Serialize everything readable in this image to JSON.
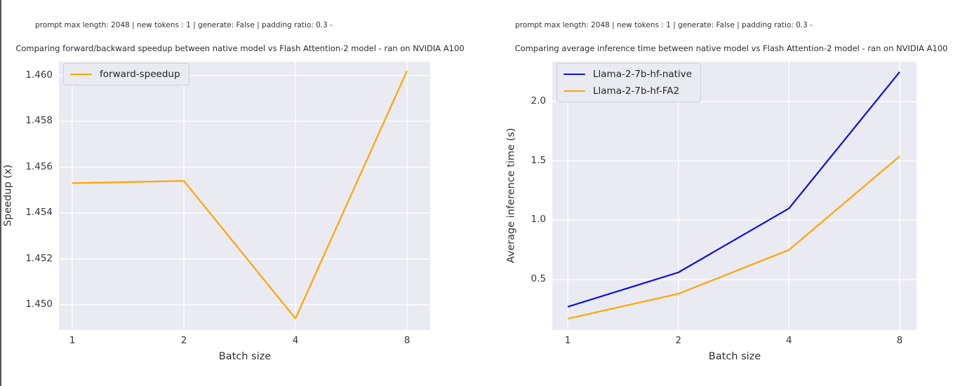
{
  "page": {
    "background": "#ffffff",
    "left_border_color": "#54545c",
    "plot_background": "#eaeaf2",
    "grid_color": "#ffffff"
  },
  "chart_data": [
    {
      "type": "line",
      "suptitle": "prompt max length: 2048 | new tokens : 1 | generate: False | padding ratio: 0.3 -",
      "title": "Comparing forward/backward speedup between native model vs Flash Attention-2 model - ran on NVIDIA A100",
      "xlabel": "Batch size",
      "ylabel": "Speedup (x)",
      "categories": [
        1,
        2,
        4,
        8
      ],
      "xtick_labels": [
        "1",
        "2",
        "4",
        "8"
      ],
      "ytick_values": [
        1.45,
        1.452,
        1.454,
        1.456,
        1.458,
        1.46
      ],
      "ytick_labels": [
        "1.450",
        "1.452",
        "1.454",
        "1.456",
        "1.458",
        "1.460"
      ],
      "ylim": [
        1.4489,
        1.4606
      ],
      "grid": true,
      "legend_position": "upper left",
      "series": [
        {
          "name": "forward-speedup",
          "color": "#ffa500",
          "values": [
            1.4553,
            1.4554,
            1.4494,
            1.4602
          ]
        }
      ]
    },
    {
      "type": "line",
      "suptitle": "prompt max length: 2048 | new tokens : 1 | generate: False | padding ratio: 0.3 -",
      "title": "Comparing average inference time between native model vs Flash Attention-2 model - ran on NVIDIA A100",
      "xlabel": "Batch size",
      "ylabel": "Average inference time (s)",
      "categories": [
        1,
        2,
        4,
        8
      ],
      "xtick_labels": [
        "1",
        "2",
        "4",
        "8"
      ],
      "ytick_values": [
        0.5,
        1.0,
        1.5,
        2.0
      ],
      "ytick_labels": [
        "0.5",
        "1.0",
        "1.5",
        "2.0"
      ],
      "ylim": [
        0.075,
        2.337
      ],
      "grid": true,
      "legend_position": "upper left",
      "series": [
        {
          "name": "Llama-2-7b-hf-native",
          "color": "#0d0de0",
          "values": [
            0.27,
            0.56,
            1.1,
            2.25
          ]
        },
        {
          "name": "Llama-2-7b-hf-FA2",
          "color": "#ffa500",
          "values": [
            0.17,
            0.38,
            0.75,
            1.54
          ]
        }
      ]
    }
  ]
}
